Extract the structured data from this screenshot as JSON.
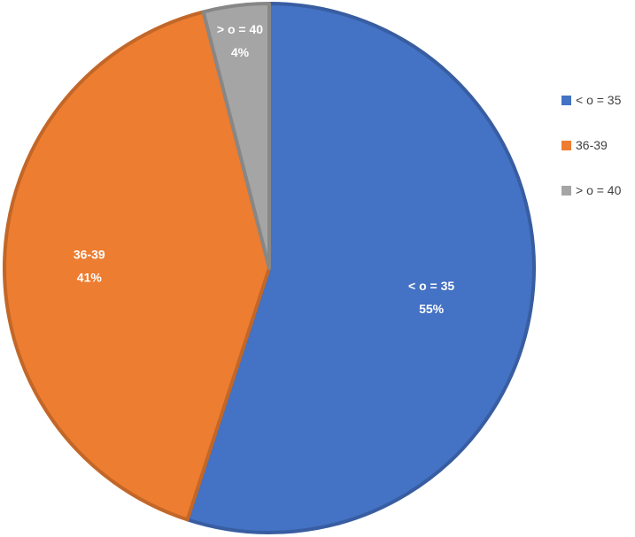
{
  "chart_data": {
    "type": "pie",
    "title": "",
    "categories": [
      "< o = 35",
      "36-39",
      "> o = 40"
    ],
    "values": [
      55,
      41,
      4
    ],
    "value_labels": [
      "55%",
      "41%",
      "4%"
    ],
    "colors": [
      "#4472C4",
      "#ED7D31",
      "#A5A5A5"
    ],
    "legend_placement": "right",
    "legend_entries": [
      "< o = 35",
      "36-39",
      "> o = 40"
    ]
  }
}
